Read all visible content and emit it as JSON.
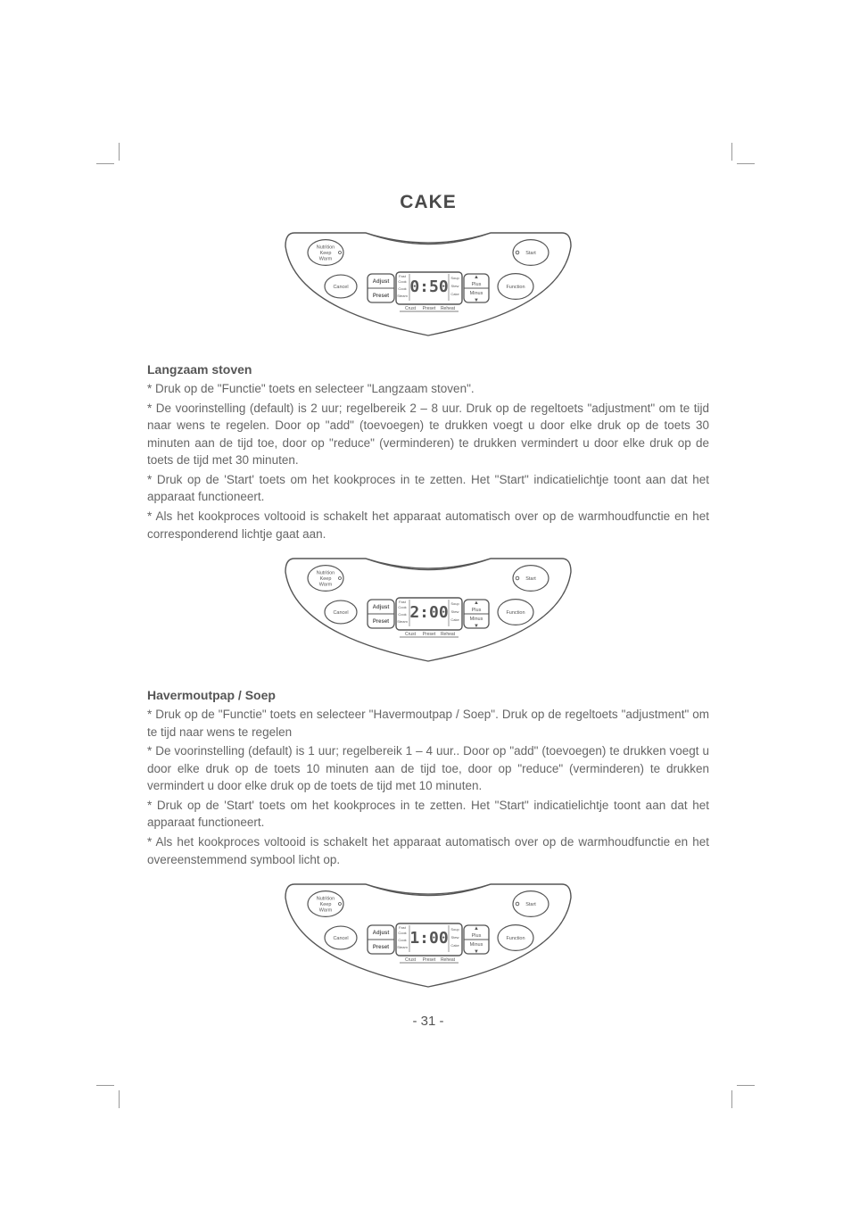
{
  "page": {
    "title": "CAKE",
    "page_number": "- 31 -"
  },
  "panels": [
    {
      "display_time": "0:50"
    },
    {
      "display_time": "2:00"
    },
    {
      "display_time": "1:00"
    }
  ],
  "panel_common": {
    "btn_keepwarm_l1": "Nutrition",
    "btn_keepwarm_l2": "Keep",
    "btn_keepwarm_l3": "Warm",
    "btn_start": "Start",
    "btn_cancel": "Cancel",
    "btn_function": "Function",
    "btn_adjust": "Adjust",
    "btn_preset": "Preset",
    "btn_plus": "Plus",
    "btn_minus": "Minus",
    "lcd_left_1": "Fast",
    "lcd_left_2": "Cook",
    "lcd_left_3": "Cook",
    "lcd_left_4": "Steam",
    "lcd_right_1": "Soup",
    "lcd_right_2": "Stew",
    "lcd_right_3": "Cake",
    "lcd_bottom_1": "Crust",
    "lcd_bottom_2": "Preset",
    "lcd_bottom_3": "Reheat",
    "arrow_up": "▲",
    "arrow_down": "▼",
    "dot": "○"
  },
  "sections": [
    {
      "heading": "Langzaam stoven",
      "paragraphs": [
        "* Druk op de \"Functie\" toets en selecteer \"Langzaam stoven\".",
        "* De voorinstelling (default) is 2 uur; regelbereik 2 – 8 uur. Druk op de regeltoets \"adjustment\" om te tijd naar wens te regelen.  Door op \"add\" (toevoegen) te drukken voegt u door elke druk op de toets 30 minuten aan de tijd toe, door op \"reduce\" (verminderen) te drukken vermindert u door elke druk op de toets de tijd met 30 minuten.",
        "* Druk op de 'Start' toets om het kookproces in te zetten. Het \"Start\" indicatielichtje toont aan dat het apparaat functioneert.",
        "* Als het kookproces voltooid is schakelt het apparaat automatisch over op de warmhoudfunctie en het corresponderend lichtje gaat aan."
      ]
    },
    {
      "heading": "Havermoutpap / Soep",
      "paragraphs": [
        "* Druk op de \"Functie\" toets en selecteer \"Havermoutpap / Soep\". Druk op de regeltoets \"adjustment\" om te tijd naar wens te regelen",
        "* De voorinstelling (default) is 1 uur; regelbereik 1 – 4 uur..  Door op \"add\" (toevoegen) te drukken voegt u door elke druk op de toets 10 minuten aan de tijd toe, door op \"reduce\" (verminderen) te drukken vermindert u door elke druk op de toets de tijd met 10 minuten.",
        "* Druk op de 'Start' toets om het kookproces in te zetten. Het \"Start\" indicatielichtje toont aan dat het apparaat functioneert.",
        "* Als het kookproces voltooid is schakelt het apparaat automatisch over op de warmhoudfunctie en het overeenstemmend symbool licht op."
      ]
    }
  ],
  "style": {
    "text_color": "#666666",
    "heading_color": "#555555",
    "title_color": "#4a4a4a",
    "stroke_color": "#555555",
    "background": "#ffffff",
    "body_font_size": 13.5,
    "heading_font_size": 14,
    "title_font_size": 21
  }
}
